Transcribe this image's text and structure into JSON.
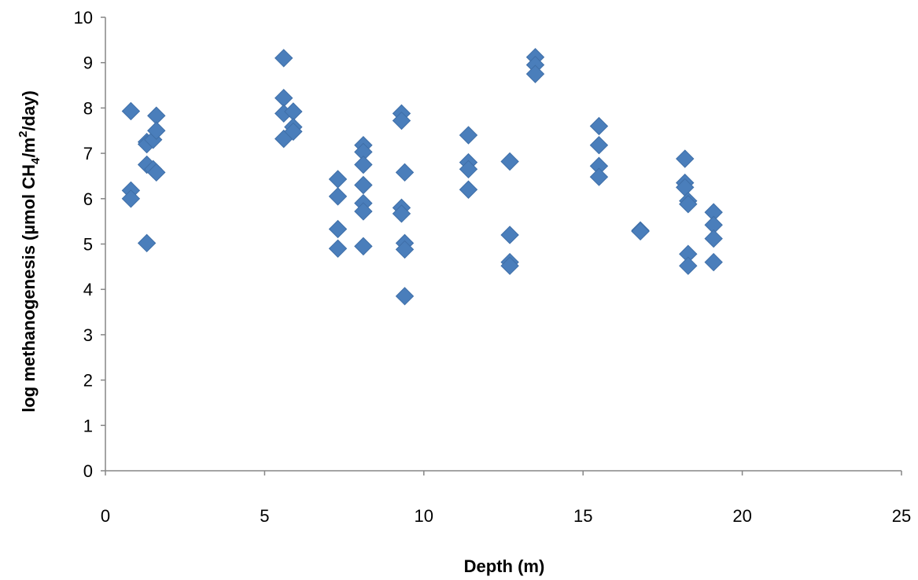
{
  "chart_data": {
    "type": "scatter",
    "title": "",
    "xlabel": "Depth (m)",
    "ylabel": {
      "prefix": "log methanogenesis  (µmol CH",
      "sub": "4",
      "mid": "/m",
      "sup": "2",
      "suffix": "/day)"
    },
    "xlim": [
      0,
      25
    ],
    "ylim": [
      0,
      10
    ],
    "x_ticks": [
      0,
      5,
      10,
      15,
      20,
      25
    ],
    "y_ticks": [
      0,
      1,
      2,
      3,
      4,
      5,
      6,
      7,
      8,
      9,
      10
    ],
    "grid": false,
    "legend": "none",
    "marker_color": "#4a7ebb",
    "series": [
      {
        "points": [
          [
            0.8,
            7.93
          ],
          [
            0.8,
            6.18
          ],
          [
            0.8,
            6.0
          ],
          [
            1.3,
            5.02
          ],
          [
            1.3,
            7.25
          ],
          [
            1.3,
            7.2
          ],
          [
            1.3,
            6.75
          ],
          [
            1.5,
            7.3
          ],
          [
            1.5,
            6.65
          ],
          [
            1.6,
            7.83
          ],
          [
            1.6,
            7.5
          ],
          [
            1.6,
            6.58
          ],
          [
            5.6,
            9.1
          ],
          [
            5.6,
            8.22
          ],
          [
            5.6,
            7.88
          ],
          [
            5.6,
            7.32
          ],
          [
            5.9,
            7.92
          ],
          [
            5.9,
            7.58
          ],
          [
            5.9,
            7.48
          ],
          [
            7.3,
            6.43
          ],
          [
            7.3,
            6.05
          ],
          [
            7.3,
            5.33
          ],
          [
            7.3,
            4.9
          ],
          [
            8.1,
            7.18
          ],
          [
            8.1,
            7.03
          ],
          [
            8.1,
            6.75
          ],
          [
            8.1,
            6.3
          ],
          [
            8.1,
            5.9
          ],
          [
            8.1,
            5.72
          ],
          [
            8.1,
            4.95
          ],
          [
            9.3,
            7.88
          ],
          [
            9.3,
            7.72
          ],
          [
            9.4,
            6.58
          ],
          [
            9.3,
            5.8
          ],
          [
            9.3,
            5.67
          ],
          [
            9.4,
            5.02
          ],
          [
            9.4,
            4.88
          ],
          [
            9.4,
            3.85
          ],
          [
            11.4,
            7.4
          ],
          [
            11.4,
            6.8
          ],
          [
            11.4,
            6.65
          ],
          [
            11.4,
            6.2
          ],
          [
            12.7,
            6.82
          ],
          [
            12.7,
            5.2
          ],
          [
            12.7,
            4.6
          ],
          [
            12.7,
            4.52
          ],
          [
            13.5,
            9.12
          ],
          [
            13.5,
            8.95
          ],
          [
            13.5,
            8.75
          ],
          [
            15.5,
            7.6
          ],
          [
            15.5,
            7.18
          ],
          [
            15.5,
            6.72
          ],
          [
            15.5,
            6.48
          ],
          [
            16.8,
            5.3
          ],
          [
            16.8,
            5.28
          ],
          [
            18.2,
            6.88
          ],
          [
            18.2,
            6.35
          ],
          [
            18.2,
            6.25
          ],
          [
            18.3,
            5.95
          ],
          [
            18.3,
            5.88
          ],
          [
            18.3,
            4.78
          ],
          [
            18.3,
            4.52
          ],
          [
            19.1,
            5.7
          ],
          [
            19.1,
            5.42
          ],
          [
            19.1,
            5.12
          ],
          [
            19.1,
            4.6
          ]
        ]
      }
    ]
  }
}
